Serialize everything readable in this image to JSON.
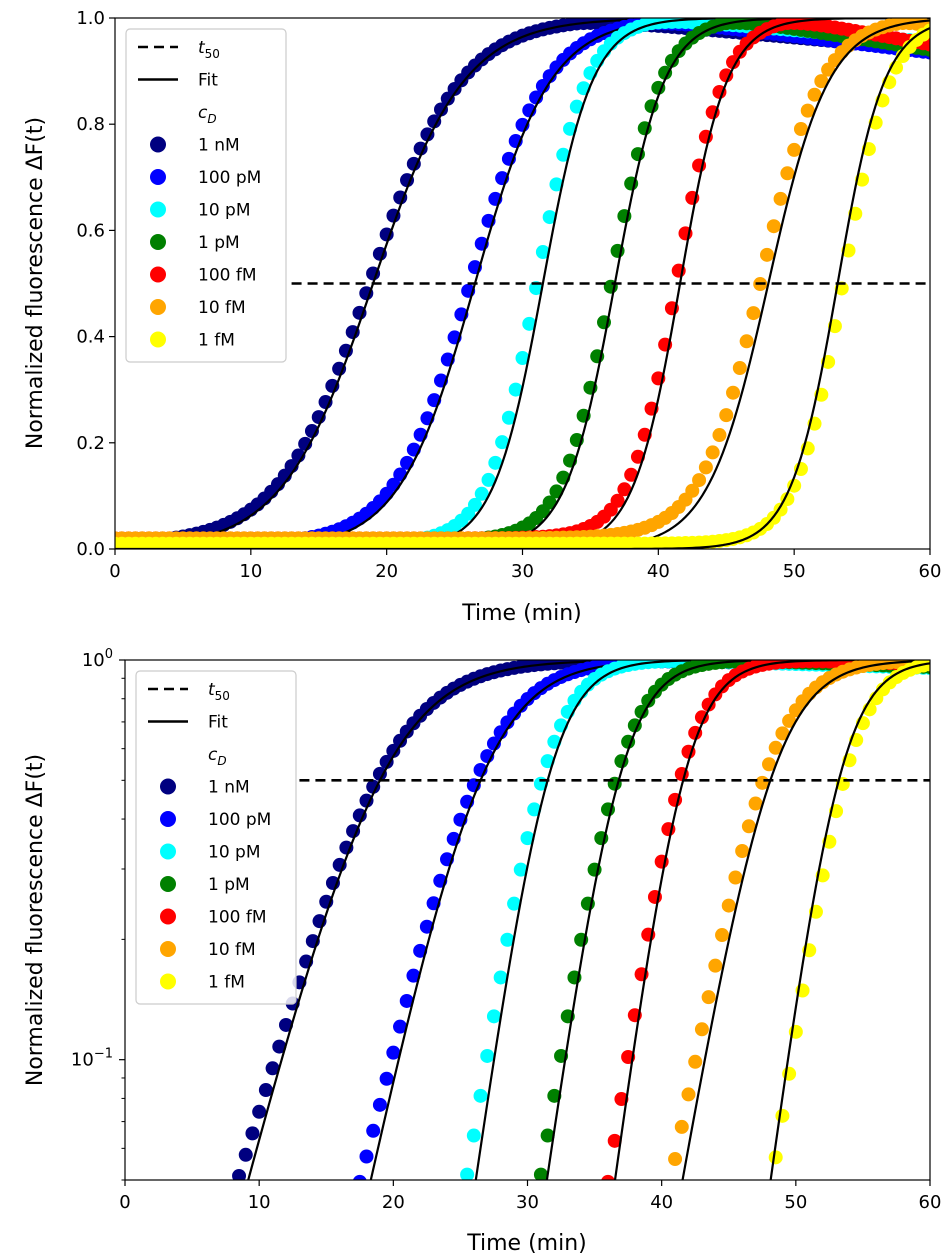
{
  "chart_data": [
    {
      "type": "scatter",
      "xlabel": "Time (min)",
      "ylabel": "Normalized fluorescence ΔF(t)",
      "xlim": [
        0,
        60
      ],
      "ylim": [
        0,
        1.0
      ],
      "yscale": "linear",
      "xticks": [
        "0",
        "10",
        "20",
        "30",
        "40",
        "50",
        "60"
      ],
      "yticks": [
        "0.0",
        "0.2",
        "0.4",
        "0.6",
        "0.8",
        "1.0"
      ],
      "grid": false,
      "legend_position": "top-left",
      "legend": {
        "t50": "t50",
        "fit": "Fit",
        "title": "cD"
      },
      "t50_line": {
        "y": 0.5,
        "x_range": [
          13,
          60
        ]
      },
      "series": [
        {
          "name": "1 nM",
          "color": "#000080",
          "t50": 18.8,
          "fit_t50": 19.0,
          "k": 0.3,
          "plateau_end": 0.94,
          "baseline": 0.008,
          "x_range": [
            0,
            60
          ]
        },
        {
          "name": "100 pM",
          "color": "#0000ff",
          "t50": 26.2,
          "fit_t50": 26.5,
          "k": 0.36,
          "plateau_end": 0.935,
          "baseline": 0.008,
          "x_range": [
            0,
            60
          ]
        },
        {
          "name": "10 pM",
          "color": "#00ffff",
          "t50": 31.1,
          "fit_t50": 31.5,
          "k": 0.55,
          "plateau_end": 0.955,
          "baseline": 0.01,
          "x_range": [
            0,
            60
          ]
        },
        {
          "name": "1 pM",
          "color": "#008000",
          "t50": 36.6,
          "fit_t50": 36.8,
          "k": 0.55,
          "plateau_end": 0.94,
          "baseline": 0.015,
          "x_range": [
            0,
            60
          ]
        },
        {
          "name": "100 fM",
          "color": "#ff0000",
          "t50": 41.4,
          "fit_t50": 41.6,
          "k": 0.58,
          "plateau_end": 0.95,
          "baseline": 0.02,
          "x_range": [
            0,
            60
          ]
        },
        {
          "name": "10 fM",
          "color": "#ffa500",
          "t50": 47.6,
          "fit_t50": 48.1,
          "k": 0.45,
          "plateau_end": 0.985,
          "baseline": 0.02,
          "x_range": [
            0,
            60
          ]
        },
        {
          "name": "1 fM",
          "color": "#ffff00",
          "t50": 53.6,
          "fit_t50": 53.2,
          "k": 0.58,
          "plateau_end": 0.98,
          "baseline": 0.01,
          "x_range": [
            0,
            60
          ]
        }
      ]
    },
    {
      "type": "scatter",
      "xlabel": "Time (min)",
      "ylabel": "Normalized fluorescence ΔF(t)",
      "xlim": [
        0,
        60
      ],
      "ylim": [
        0.05,
        1.0
      ],
      "yscale": "log",
      "xticks": [
        "0",
        "10",
        "20",
        "30",
        "40",
        "50",
        "60"
      ],
      "yticks": [
        "10^0",
        "10^-1"
      ],
      "grid": false,
      "legend_position": "top-left",
      "legend": {
        "t50": "t50",
        "fit": "Fit",
        "title": "cD"
      },
      "t50_line": {
        "y": 0.5,
        "x_range": [
          13,
          60
        ]
      },
      "series": [
        {
          "name": "1 nM",
          "color": "#000080",
          "t50": 18.8,
          "fit_t50": 19.0,
          "k": 0.3,
          "plateau_end": 0.97
        },
        {
          "name": "100 pM",
          "color": "#0000ff",
          "t50": 26.2,
          "fit_t50": 26.5,
          "k": 0.36,
          "plateau_end": 0.96
        },
        {
          "name": "10 pM",
          "color": "#00ffff",
          "t50": 31.1,
          "fit_t50": 31.5,
          "k": 0.55,
          "plateau_end": 0.955
        },
        {
          "name": "1 pM",
          "color": "#008000",
          "t50": 36.6,
          "fit_t50": 36.8,
          "k": 0.55,
          "plateau_end": 0.96
        },
        {
          "name": "100 fM",
          "color": "#ff0000",
          "t50": 41.4,
          "fit_t50": 41.6,
          "k": 0.58,
          "plateau_end": 0.975
        },
        {
          "name": "10 fM",
          "color": "#ffa500",
          "t50": 47.6,
          "fit_t50": 48.1,
          "k": 0.45,
          "plateau_end": 0.975
        },
        {
          "name": "1 fM",
          "color": "#ffff00",
          "t50": 53.6,
          "fit_t50": 53.2,
          "k": 0.58,
          "plateau_end": 0.97
        }
      ]
    }
  ]
}
